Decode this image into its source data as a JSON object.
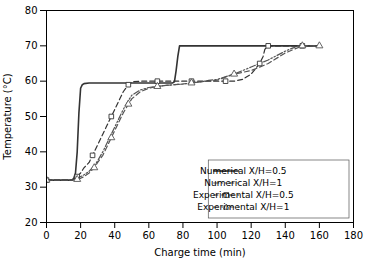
{
  "chart_data": {
    "type": "line",
    "xlabel": "Charge time (min)",
    "ylabel": "Temperature (°C)",
    "xlim": [
      0,
      180
    ],
    "ylim": [
      20,
      80
    ],
    "xticks": [
      0,
      20,
      40,
      60,
      80,
      100,
      120,
      140,
      160,
      180
    ],
    "yticks": [
      20,
      30,
      40,
      50,
      60,
      70,
      80
    ],
    "grid": false,
    "legend": "lower right",
    "series": [
      {
        "name": "Numerical X/H=0.5",
        "color": "#333333",
        "line_style": "solid",
        "x": [
          0,
          2,
          5,
          8,
          10,
          12,
          13,
          14,
          15,
          16,
          17,
          18,
          19,
          20,
          21,
          22,
          25,
          30,
          40,
          50,
          60,
          70,
          74,
          75,
          76,
          77,
          78,
          79,
          80,
          90,
          100,
          110,
          120,
          130,
          140,
          150,
          160
        ],
        "values": [
          32,
          32,
          32,
          32,
          32,
          32,
          32,
          32,
          32,
          32.5,
          34,
          40,
          51,
          58,
          59,
          59.3,
          59.5,
          59.5,
          59.5,
          59.5,
          59.5,
          59.5,
          59.5,
          59.8,
          63,
          67,
          70,
          70,
          70,
          70,
          70,
          70,
          70,
          70,
          70,
          70,
          70
        ]
      },
      {
        "name": "Numerical X/H=1",
        "color": "#555555",
        "line_style": "dashdotdot",
        "x": [
          0,
          5,
          10,
          15,
          18,
          20,
          22,
          25,
          28,
          30,
          33,
          35,
          38,
          40,
          43,
          45,
          48,
          50,
          55,
          60,
          65,
          70,
          75,
          80,
          85,
          90,
          95,
          100,
          110,
          120,
          130,
          140,
          145,
          147,
          148,
          150,
          155,
          160
        ],
        "values": [
          32,
          32,
          32,
          32,
          32.3,
          33,
          33.5,
          34.5,
          36,
          37.5,
          40,
          42,
          45,
          47,
          50,
          52,
          54.5,
          56,
          57.5,
          58.2,
          58.5,
          58.8,
          59,
          59.2,
          59.5,
          59.8,
          60.2,
          60.5,
          62,
          64,
          66,
          68.5,
          69.5,
          70,
          70,
          70,
          70,
          70
        ]
      },
      {
        "name": "Experimental X/H=0.5",
        "color": "#333333",
        "line_style": "dashed",
        "marker": "square",
        "x": [
          0,
          5,
          10,
          15,
          18,
          20,
          22,
          25,
          27,
          30,
          33,
          35,
          38,
          40,
          43,
          45,
          48,
          50,
          55,
          60,
          65,
          70,
          75,
          80,
          85,
          90,
          95,
          100,
          105,
          110,
          115,
          120,
          125,
          127,
          128,
          129,
          130,
          135,
          140,
          145,
          150,
          155,
          160
        ],
        "values": [
          32,
          32,
          32,
          32,
          33,
          34,
          35.5,
          37,
          39,
          42,
          45,
          47,
          50,
          52,
          55,
          57,
          59,
          59.8,
          60,
          60,
          60,
          60,
          60,
          60,
          60,
          60,
          60,
          60,
          60,
          60,
          60.5,
          62,
          65,
          67,
          69,
          69.5,
          70,
          70,
          70,
          70,
          70,
          70,
          70
        ]
      },
      {
        "name": "Experimental X/H=1",
        "color": "#555555",
        "line_style": "dashed",
        "marker": "triangle",
        "x": [
          0,
          5,
          10,
          15,
          18,
          20,
          22,
          25,
          28,
          30,
          33,
          35,
          38,
          40,
          43,
          45,
          48,
          50,
          55,
          60,
          65,
          70,
          75,
          80,
          85,
          90,
          95,
          100,
          110,
          120,
          130,
          140,
          150,
          155,
          157,
          158,
          160
        ],
        "values": [
          32,
          32,
          32,
          32,
          32.2,
          32.5,
          33,
          34,
          35.5,
          37,
          39,
          41,
          44,
          46,
          49,
          51,
          53.5,
          55,
          57,
          58,
          58.5,
          58.8,
          59,
          59.2,
          59.5,
          59.8,
          60,
          60.3,
          62,
          63,
          65,
          68,
          70,
          70,
          70,
          70,
          70
        ]
      }
    ]
  }
}
